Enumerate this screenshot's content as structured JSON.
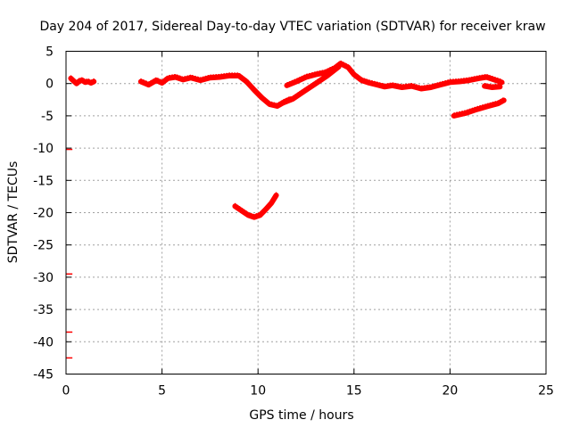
{
  "chart_data": {
    "type": "line",
    "title": "Day 204 of 2017, Sidereal Day-to-day VTEC variation (SDTVAR) for receiver kraw",
    "xlabel": "GPS time / hours",
    "ylabel": "SDTVAR / TECUs",
    "xlim": [
      0,
      25
    ],
    "ylim": [
      -45,
      5
    ],
    "xticks": [
      0,
      5,
      10,
      15,
      20,
      25
    ],
    "yticks": [
      5,
      0,
      -5,
      -10,
      -15,
      -20,
      -25,
      -30,
      -35,
      -40,
      -45
    ],
    "grid": true,
    "series_color": "#ff0000",
    "series": [
      {
        "name": "main-0",
        "x": [
          0.25,
          0.4,
          0.55,
          0.7,
          0.85,
          1.0,
          1.15,
          1.3,
          1.45
        ],
        "y": [
          0.8,
          0.4,
          0.0,
          0.4,
          0.5,
          0.2,
          0.3,
          0.1,
          0.3
        ]
      },
      {
        "name": "main-1",
        "x": [
          3.9,
          4.3,
          4.7,
          5.0,
          5.3,
          5.7,
          6.1,
          6.5,
          7.0,
          7.5,
          8.0,
          8.5,
          9.0,
          9.4,
          9.8,
          10.2,
          10.6,
          11.0,
          11.4,
          11.7
        ],
        "y": [
          0.3,
          -0.2,
          0.5,
          0.1,
          0.8,
          1.0,
          0.6,
          0.9,
          0.5,
          0.9,
          1.0,
          1.2,
          1.2,
          0.3,
          -1.0,
          -2.2,
          -3.2,
          -3.5,
          -2.8,
          -2.4
        ]
      },
      {
        "name": "main-2",
        "x": [
          11.5,
          12.0,
          12.5,
          13.0,
          13.5,
          14.0,
          14.3,
          14.7,
          15.0,
          15.4,
          15.8,
          16.2,
          16.6,
          17.0,
          17.5,
          18.0,
          18.5,
          19.0,
          19.5,
          20.0,
          20.5,
          21.0,
          21.5,
          21.9,
          22.3,
          22.7
        ],
        "y": [
          -0.3,
          0.3,
          1.0,
          1.4,
          1.7,
          2.4,
          3.1,
          2.5,
          1.4,
          0.5,
          0.1,
          -0.2,
          -0.5,
          -0.3,
          -0.6,
          -0.4,
          -0.8,
          -0.6,
          -0.2,
          0.2,
          0.3,
          0.5,
          0.8,
          1.0,
          0.6,
          0.2
        ]
      },
      {
        "name": "side-branch",
        "x": [
          11.3,
          11.8,
          12.4,
          13.0,
          13.6,
          14.2
        ],
        "y": [
          -3.0,
          -2.4,
          -1.2,
          0.0,
          1.2,
          2.6
        ]
      },
      {
        "name": "tail-upper",
        "x": [
          21.8,
          22.2,
          22.6
        ],
        "y": [
          -0.4,
          -0.6,
          -0.5
        ]
      },
      {
        "name": "tail-lower",
        "x": [
          20.2,
          20.8,
          21.4,
          22.0,
          22.5,
          22.8
        ],
        "y": [
          -5.0,
          -4.6,
          -4.0,
          -3.5,
          -3.1,
          -2.6
        ]
      },
      {
        "name": "outlier-arc",
        "x": [
          8.8,
          9.2,
          9.5,
          9.8,
          10.1,
          10.4,
          10.7,
          10.95
        ],
        "y": [
          -19.0,
          -19.8,
          -20.4,
          -20.7,
          -20.4,
          -19.5,
          -18.5,
          -17.3
        ]
      }
    ],
    "stray_points": [
      {
        "x": 0.1,
        "y": -10.2
      },
      {
        "x": 0.1,
        "y": -29.5
      },
      {
        "x": 0.1,
        "y": -38.5
      },
      {
        "x": 0.1,
        "y": -42.5
      }
    ]
  }
}
